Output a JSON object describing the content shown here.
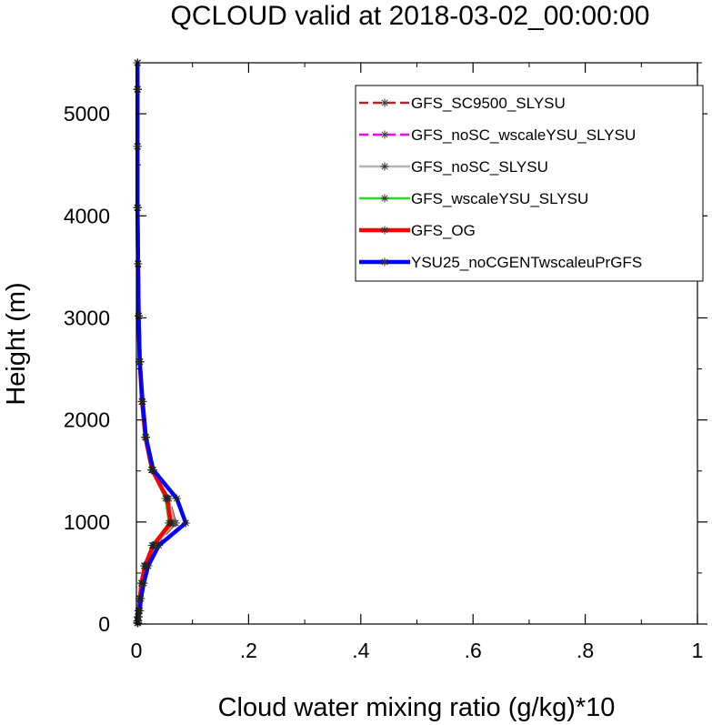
{
  "chart_data": {
    "type": "line",
    "title": "QCLOUD valid at 2018-03-02_00:00:00",
    "xlabel": "Cloud water mixing ratio (g/kg)*10",
    "ylabel": "Height (m)",
    "xlim": [
      0,
      1
    ],
    "ylim": [
      0,
      5500
    ],
    "x_ticks": [
      0,
      0.2,
      0.4,
      0.6,
      0.8,
      1
    ],
    "x_tick_labels": [
      "0",
      ".2",
      ".4",
      ".6",
      ".8",
      "1"
    ],
    "y_ticks": [
      0,
      1000,
      2000,
      3000,
      4000,
      5000
    ],
    "y_tick_labels": [
      "0",
      "1000",
      "2000",
      "3000",
      "4000",
      "5000"
    ],
    "grid": false,
    "legend_position": "top-right",
    "heights": [
      10,
      30,
      70,
      130,
      250,
      400,
      570,
      770,
      990,
      1230,
      1510,
      1830,
      2180,
      2570,
      3020,
      3530,
      4080,
      4680,
      5240,
      5500
    ],
    "series": [
      {
        "name": "GFS_SC9500_SLYSU",
        "color": "#a52a2a",
        "dash": "14,7",
        "width": 2.5,
        "values": [
          0.002,
          0.002,
          0.003,
          0.004,
          0.006,
          0.01,
          0.017,
          0.035,
          0.07,
          0.058,
          0.028,
          0.017,
          0.011,
          0.006,
          0.004,
          0.003,
          0.002,
          0.002,
          0.002,
          0.002
        ]
      },
      {
        "name": "GFS_noSC_wscaleYSU_SLYSU",
        "color": "#ff00ff",
        "dash": "14,7",
        "width": 2.5,
        "values": [
          0.002,
          0.002,
          0.003,
          0.004,
          0.006,
          0.01,
          0.016,
          0.032,
          0.065,
          0.055,
          0.027,
          0.016,
          0.01,
          0.006,
          0.004,
          0.003,
          0.002,
          0.002,
          0.002,
          0.002
        ]
      },
      {
        "name": "GFS_noSC_SLYSU",
        "color": "#b5b5b5",
        "dash": "",
        "width": 2.5,
        "values": [
          0.002,
          0.002,
          0.003,
          0.004,
          0.006,
          0.01,
          0.016,
          0.033,
          0.068,
          0.057,
          0.028,
          0.016,
          0.01,
          0.006,
          0.004,
          0.003,
          0.002,
          0.002,
          0.002,
          0.002
        ]
      },
      {
        "name": "GFS_wscaleYSU_SLYSU",
        "color": "#22dd22",
        "dash": "",
        "width": 2.5,
        "values": [
          0.002,
          0.002,
          0.003,
          0.004,
          0.006,
          0.009,
          0.014,
          0.028,
          0.058,
          0.052,
          0.027,
          0.016,
          0.01,
          0.006,
          0.004,
          0.003,
          0.002,
          0.002,
          0.002,
          0.002
        ]
      },
      {
        "name": "GFS_OG",
        "color": "#ff0000",
        "dash": "",
        "width": 4.5,
        "values": [
          0.002,
          0.002,
          0.003,
          0.004,
          0.006,
          0.009,
          0.015,
          0.03,
          0.061,
          0.055,
          0.028,
          0.016,
          0.01,
          0.006,
          0.004,
          0.003,
          0.002,
          0.002,
          0.002,
          0.002
        ]
      },
      {
        "name": "YSU25_noCGENTwscaleuPrGFS",
        "color": "#0000ff",
        "dash": "",
        "width": 4.5,
        "values": [
          0.003,
          0.003,
          0.004,
          0.006,
          0.008,
          0.013,
          0.021,
          0.04,
          0.088,
          0.072,
          0.03,
          0.017,
          0.011,
          0.006,
          0.004,
          0.003,
          0.002,
          0.002,
          0.002,
          0.002
        ]
      }
    ]
  }
}
